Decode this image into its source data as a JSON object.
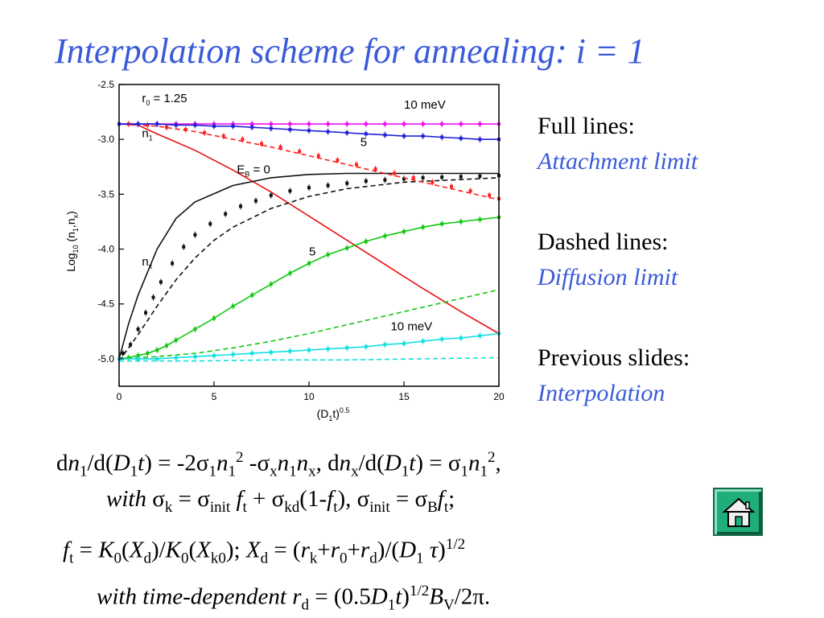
{
  "slide": {
    "title": "Interpolation scheme for annealing: i = 1"
  },
  "legend": {
    "full_label": "Full lines:",
    "full_desc": "Attachment limit",
    "dashed_label": "Dashed lines:",
    "dashed_desc": "Diffusion limit",
    "prev_label": "Previous slides:",
    "prev_desc": "Interpolation"
  },
  "equations": {
    "line1": {
      "d1": "d",
      "n1": "n",
      "s1": "1",
      "slash1": "/d(",
      "D1": "D",
      "s2": "1",
      "t1": "t",
      "eq1": ") = -2σ",
      "s3": "1",
      "n2": "n",
      "s4": "1",
      "p2a": "2",
      "minus": " -σ",
      "sx1": "x",
      "n3": "n",
      "s5": "1",
      "n4": "n",
      "sx2": "x",
      "comma1": ", d",
      "n5": "n",
      "sx3": "x",
      "slash2": "/d(",
      "D2": "D",
      "s6": "1",
      "t2": "t",
      "eq2": ") = σ",
      "s7": "1",
      "n6": "n",
      "s8": "1",
      "p2b": "2",
      "end": ","
    },
    "line2": {
      "with": "with",
      "sig1": " σ",
      "k1": "k",
      "eq1": " = σ",
      "init1": "init",
      "f1": " f",
      "t1": "t",
      "plus": " + σ",
      "kd": "kd",
      "par": "(1-",
      "f2": "f",
      "t2": "t",
      "close": "), σ",
      "init2": "init",
      "eq2": " = σ",
      "B": "B",
      "f3": "f",
      "t3": "t",
      "semi": ";"
    },
    "line3": {
      "f": "f",
      "t": "t",
      "eq1": " = ",
      "K1": "K",
      "z1": "0",
      "o1": "(",
      "X1": "X",
      "d1": "d",
      "c1": ")/",
      "K2": "K",
      "z2": "0",
      "o2": "(",
      "X2": "X",
      "k0": "k0",
      "c2": "); ",
      "X3": "X",
      "d2": "d",
      "eq2": " = (",
      "r1": "r",
      "k": "k",
      "p1": "+",
      "r2": "r",
      "z3": "0",
      "p2": "+",
      "r3": "r",
      "d3": "d",
      "c3": ")/(",
      "D": "D",
      "one": "1",
      "tau": " τ",
      "c4": ")",
      "half": "1/2"
    },
    "line4": {
      "with": "with time-dependent",
      "r": " r",
      "d": "d",
      "eq": " = (0.5",
      "D": "D",
      "one": "1",
      "t": "t",
      "c": ")",
      "half": "1/2",
      "B": "B",
      "V": "V",
      "tail": "/2π."
    }
  },
  "nav": {
    "home_icon": "home-icon"
  },
  "chart_data": {
    "type": "line",
    "xlabel": "(D1t)0.5",
    "ylabel": "Log10 (n1,nx)",
    "xlim": [
      0,
      20
    ],
    "ylim": [
      -5.25,
      -2.5
    ],
    "x_ticks": [
      "0",
      "5",
      "10",
      "15",
      "20"
    ],
    "y_ticks": [
      "-2.5",
      "-3.0",
      "-3.5",
      "-4.0",
      "-4.5",
      "-5.0"
    ],
    "annotations": [
      {
        "text": "r0 = 1.25",
        "x": 1.2,
        "y": -2.66
      },
      {
        "text": "10 meV",
        "x": 15.0,
        "y": -2.72
      },
      {
        "text": "n1",
        "x": 1.2,
        "y": -2.98
      },
      {
        "text": "5",
        "x": 12.7,
        "y": -3.06
      },
      {
        "text": "EB = 0",
        "x": 6.2,
        "y": -3.31
      },
      {
        "text": "nx",
        "x": 1.2,
        "y": -4.15
      },
      {
        "text": "5",
        "x": 10.0,
        "y": -4.06
      },
      {
        "text": "10 meV",
        "x": 14.3,
        "y": -4.74
      }
    ],
    "series": [
      {
        "color": "#e81010",
        "style": "solid",
        "marker": false,
        "x": [
          0,
          1,
          2,
          4,
          6,
          8,
          10,
          12,
          14,
          16,
          18,
          20
        ],
        "y": [
          -2.86,
          -2.87,
          -2.95,
          -3.1,
          -3.28,
          -3.48,
          -3.7,
          -3.92,
          -4.14,
          -4.36,
          -4.57,
          -4.77
        ]
      },
      {
        "color": "#101010",
        "style": "solid",
        "marker": false,
        "x": [
          0,
          0.5,
          1,
          2,
          3,
          4,
          6,
          8,
          10,
          12,
          15,
          20
        ],
        "y": [
          -5.0,
          -4.68,
          -4.42,
          -4.0,
          -3.72,
          -3.57,
          -3.42,
          -3.35,
          -3.32,
          -3.31,
          -3.31,
          -3.31
        ]
      },
      {
        "color": "#101010",
        "style": "dashed",
        "marker": false,
        "x": [
          0,
          1,
          2,
          3,
          4,
          5,
          6,
          8,
          10,
          12,
          15,
          20
        ],
        "y": [
          -5.02,
          -4.78,
          -4.52,
          -4.28,
          -4.08,
          -3.92,
          -3.8,
          -3.63,
          -3.52,
          -3.45,
          -3.39,
          -3.35
        ]
      },
      {
        "color": "#101010",
        "style": "none",
        "marker": true,
        "x": [
          0.2,
          0.6,
          1.0,
          1.4,
          1.8,
          2.2,
          2.8,
          3.4,
          4.0,
          4.8,
          5.6,
          6.4,
          7.2,
          8.0,
          9.0,
          10.0,
          11.0,
          12.0,
          13.0,
          14.0,
          15.0,
          16.0,
          17.0,
          18.0,
          19.0,
          20.0
        ],
        "y": [
          -4.95,
          -4.87,
          -4.73,
          -4.58,
          -4.44,
          -4.3,
          -4.13,
          -3.98,
          -3.87,
          -3.77,
          -3.68,
          -3.61,
          -3.56,
          -3.51,
          -3.47,
          -3.44,
          -3.42,
          -3.4,
          -3.38,
          -3.37,
          -3.36,
          -3.35,
          -3.345,
          -3.34,
          -3.335,
          -3.33
        ]
      },
      {
        "color": "#ff2020",
        "style": "dashed",
        "marker": false,
        "x": [
          0,
          2,
          4,
          6,
          8,
          10,
          12,
          14,
          16,
          18,
          20
        ],
        "y": [
          -2.86,
          -2.88,
          -2.93,
          -3.0,
          -3.07,
          -3.15,
          -3.23,
          -3.31,
          -3.39,
          -3.47,
          -3.55
        ]
      },
      {
        "color": "#ff2020",
        "style": "none",
        "marker": true,
        "x": [
          0.5,
          1.5,
          2.5,
          3.5,
          4.5,
          5.5,
          6.5,
          7.5,
          8.5,
          9.5,
          10.5,
          11.5,
          12.5,
          13.5,
          14.5,
          15.5,
          16.5,
          17.5,
          18.5,
          19.5,
          20.0
        ],
        "y": [
          -2.86,
          -2.87,
          -2.89,
          -2.91,
          -2.94,
          -2.97,
          -3.0,
          -3.04,
          -3.07,
          -3.11,
          -3.15,
          -3.19,
          -3.23,
          -3.27,
          -3.31,
          -3.35,
          -3.39,
          -3.43,
          -3.47,
          -3.51,
          -3.54
        ]
      },
      {
        "color": "#ee10ee",
        "style": "solid",
        "marker": true,
        "x": [
          0,
          1,
          2,
          3,
          4,
          5,
          6,
          7,
          8,
          9,
          10,
          11,
          12,
          13,
          14,
          15,
          16,
          17,
          18,
          19,
          20
        ],
        "y": [
          -2.86,
          -2.86,
          -2.86,
          -2.86,
          -2.86,
          -2.86,
          -2.86,
          -2.86,
          -2.86,
          -2.86,
          -2.86,
          -2.86,
          -2.86,
          -2.86,
          -2.86,
          -2.86,
          -2.86,
          -2.86,
          -2.86,
          -2.86,
          -2.86
        ]
      },
      {
        "color": "#2020d8",
        "style": "solid",
        "marker": true,
        "x": [
          0,
          1,
          2,
          3,
          4,
          5,
          6,
          7,
          8,
          9,
          10,
          11,
          12,
          13,
          14,
          15,
          16,
          17,
          18,
          19,
          20
        ],
        "y": [
          -2.86,
          -2.86,
          -2.86,
          -2.87,
          -2.87,
          -2.88,
          -2.88,
          -2.89,
          -2.9,
          -2.91,
          -2.92,
          -2.93,
          -2.94,
          -2.95,
          -2.96,
          -2.97,
          -2.97,
          -2.98,
          -2.99,
          -3.0,
          -3.0
        ]
      },
      {
        "color": "#10c810",
        "style": "solid",
        "marker": true,
        "x": [
          0,
          0.5,
          1,
          1.5,
          2,
          2.5,
          3,
          4,
          5,
          6,
          7,
          8,
          9,
          10,
          11,
          12,
          13,
          14,
          15,
          16,
          17,
          18,
          19,
          20
        ],
        "y": [
          -5.0,
          -4.99,
          -4.97,
          -4.95,
          -4.92,
          -4.88,
          -4.83,
          -4.73,
          -4.63,
          -4.52,
          -4.42,
          -4.32,
          -4.22,
          -4.13,
          -4.05,
          -3.99,
          -3.93,
          -3.88,
          -3.84,
          -3.8,
          -3.77,
          -3.75,
          -3.73,
          -3.71
        ]
      },
      {
        "color": "#10c810",
        "style": "dashed",
        "marker": false,
        "x": [
          0,
          2,
          4,
          6,
          8,
          10,
          12,
          14,
          16,
          18,
          20
        ],
        "y": [
          -5.0,
          -4.98,
          -4.95,
          -4.9,
          -4.84,
          -4.77,
          -4.69,
          -4.61,
          -4.53,
          -4.45,
          -4.37
        ]
      },
      {
        "color": "#10e0e0",
        "style": "solid",
        "marker": true,
        "x": [
          0,
          1,
          2,
          3,
          4,
          5,
          6,
          7,
          8,
          9,
          10,
          11,
          12,
          13,
          14,
          15,
          16,
          17,
          18,
          19,
          20
        ],
        "y": [
          -5.0,
          -5.0,
          -5.0,
          -4.99,
          -4.98,
          -4.97,
          -4.96,
          -4.95,
          -4.94,
          -4.93,
          -4.92,
          -4.91,
          -4.9,
          -4.89,
          -4.87,
          -4.86,
          -4.84,
          -4.82,
          -4.81,
          -4.79,
          -4.77
        ]
      },
      {
        "color": "#10e0e0",
        "style": "dashed",
        "marker": false,
        "x": [
          0,
          4,
          8,
          12,
          16,
          20
        ],
        "y": [
          -5.02,
          -5.02,
          -5.01,
          -5.01,
          -5.0,
          -4.99
        ]
      }
    ]
  }
}
